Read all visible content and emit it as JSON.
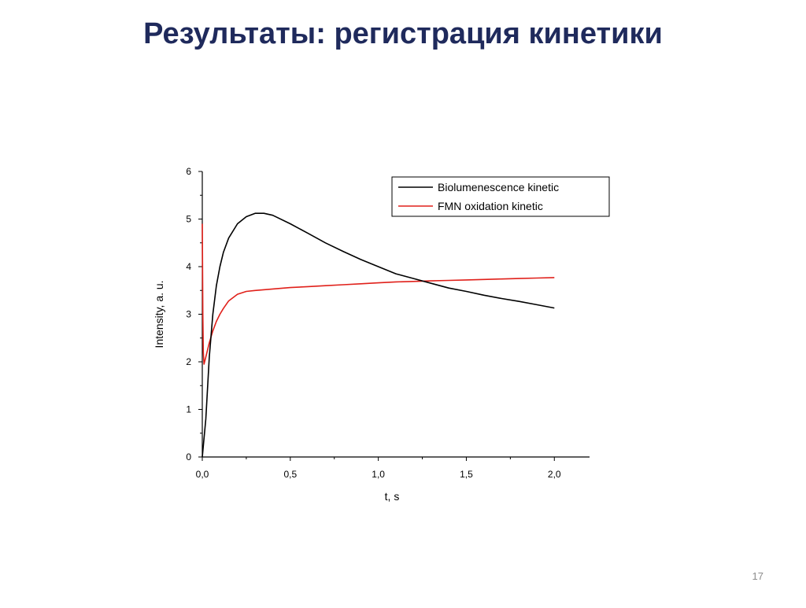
{
  "slide": {
    "title": "Результаты: регистрация кинетики",
    "page_number": "17"
  },
  "chart_data": {
    "type": "line",
    "xlabel": "t, s",
    "ylabel": "Intensity, a. u.",
    "xlim": [
      0,
      2.2
    ],
    "ylim": [
      0,
      6
    ],
    "x_ticks": [
      "0,0",
      "0,5",
      "1,0",
      "1,5",
      "2,0"
    ],
    "x_tick_values": [
      0,
      0.5,
      1.0,
      1.5,
      2.0
    ],
    "y_ticks": [
      "0",
      "1",
      "2",
      "3",
      "4",
      "5",
      "6"
    ],
    "y_tick_values": [
      0,
      1,
      2,
      3,
      4,
      5,
      6
    ],
    "legend_position": "top-right",
    "series": [
      {
        "name": "Biolumenescence kinetic",
        "color": "#000000",
        "x": [
          0.0,
          0.02,
          0.04,
          0.06,
          0.08,
          0.1,
          0.12,
          0.15,
          0.2,
          0.25,
          0.3,
          0.35,
          0.4,
          0.5,
          0.6,
          0.7,
          0.8,
          0.9,
          1.0,
          1.1,
          1.2,
          1.3,
          1.4,
          1.5,
          1.6,
          1.7,
          1.8,
          1.9,
          2.0
        ],
        "y": [
          0.0,
          0.8,
          2.1,
          3.0,
          3.6,
          4.0,
          4.3,
          4.6,
          4.9,
          5.05,
          5.12,
          5.12,
          5.08,
          4.9,
          4.7,
          4.5,
          4.32,
          4.15,
          4.0,
          3.85,
          3.75,
          3.65,
          3.55,
          3.48,
          3.4,
          3.33,
          3.27,
          3.2,
          3.13
        ]
      },
      {
        "name": "FMN oxidation kinetic",
        "color": "#e0201a",
        "x": [
          0.0,
          0.003,
          0.006,
          0.01,
          0.02,
          0.04,
          0.06,
          0.08,
          0.1,
          0.12,
          0.15,
          0.2,
          0.25,
          0.3,
          0.4,
          0.5,
          0.6,
          0.7,
          0.8,
          0.9,
          1.0,
          1.1,
          1.2,
          1.3,
          1.4,
          1.5,
          1.6,
          1.7,
          1.8,
          1.9,
          2.0
        ],
        "y": [
          4.9,
          3.0,
          2.2,
          1.95,
          2.1,
          2.4,
          2.65,
          2.85,
          3.0,
          3.12,
          3.28,
          3.42,
          3.48,
          3.5,
          3.53,
          3.56,
          3.58,
          3.6,
          3.62,
          3.64,
          3.66,
          3.68,
          3.69,
          3.7,
          3.71,
          3.72,
          3.73,
          3.74,
          3.75,
          3.76,
          3.77
        ]
      }
    ]
  }
}
